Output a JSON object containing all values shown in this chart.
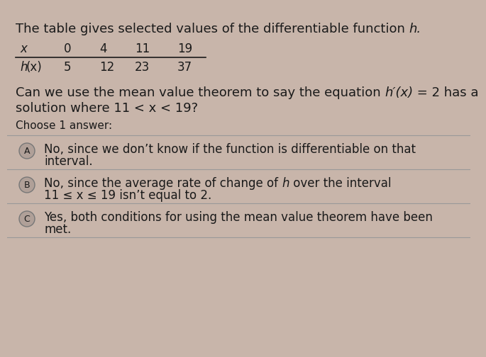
{
  "bg_color": "#c8b5aa",
  "text_color": "#1a1a1a",
  "title_plain": "The table gives selected values of the differentiable function ",
  "title_italic": "h.",
  "table_x_header": "x",
  "table_x_vals": [
    "0",
    "4",
    "11",
    "19"
  ],
  "table_h_label": "h(x)",
  "table_h_vals": [
    "5",
    "12",
    "23",
    "37"
  ],
  "question_plain1": "Can we use the mean value theorem to say the equation ",
  "question_italic": "h′(x)",
  "question_plain2": " = 2 has a",
  "question_line2": "solution where 11 < x < 19?",
  "choose_label": "Choose 1 answer:",
  "divider_color": "#999999",
  "circle_bg": "#b0a098",
  "circle_edge": "#777777",
  "opt_A_circle": "A",
  "opt_A_line1": "No, since we don’t know if the function is differentiable on that",
  "opt_A_line2": "interval.",
  "opt_B_circle": "B",
  "opt_B_pre": "No, since the average rate of change of ",
  "opt_B_italic": "h",
  "opt_B_post": " over the interval",
  "opt_B_line2": "11 ≤ x ≤ 19 isn’t equal to 2.",
  "opt_C_circle": "C",
  "opt_C_line1": "Yes, both conditions for using the mean value theorem have been",
  "opt_C_line2": "met.",
  "fs_title": 13,
  "fs_table": 12,
  "fs_question": 13,
  "fs_choose": 11,
  "fs_option": 12,
  "fs_circle": 9
}
